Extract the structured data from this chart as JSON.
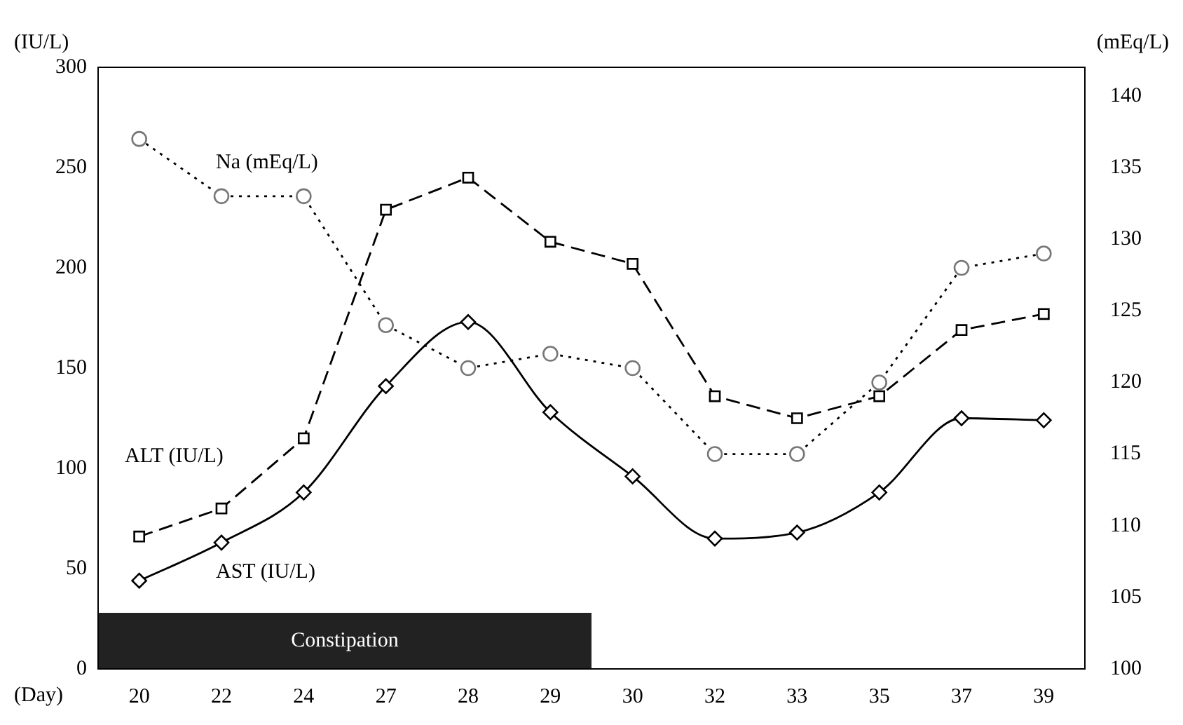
{
  "chart_data": {
    "type": "line",
    "xlabel": "(Day)",
    "ylabel": "(IU/L)",
    "y2label": "(mEq/L)",
    "categories": [
      "20",
      "22",
      "24",
      "27",
      "28",
      "29",
      "30",
      "32",
      "33",
      "35",
      "37",
      "39"
    ],
    "series": [
      {
        "name": "AST (IU/L)",
        "color": "#000000",
        "marker": "diamond",
        "line_style": "solid",
        "values": [
          44,
          63,
          88,
          141,
          173,
          128,
          96,
          65,
          68,
          88,
          125,
          124
        ]
      },
      {
        "name": "ALT (IU/L)",
        "color": "#000000",
        "marker": "square",
        "line_style": "dashed",
        "values": [
          66,
          80,
          115,
          229,
          245,
          213,
          202,
          136,
          125,
          136,
          169,
          177
        ]
      },
      {
        "name": "Na (mEq/L)",
        "color": "#777777",
        "marker": "circle",
        "line_style": "dotted",
        "axis": "y2",
        "values": [
          137,
          133,
          133,
          124,
          121,
          122,
          121,
          115,
          115,
          120,
          128,
          129
        ]
      }
    ],
    "ylim": [
      0,
      300
    ],
    "yticks": [
      0,
      50,
      100,
      150,
      200,
      250,
      300
    ],
    "y2lim": [
      100,
      142
    ],
    "y2ticks": [
      100,
      105,
      110,
      115,
      120,
      125,
      130,
      135,
      140
    ],
    "bands": [
      {
        "axis": "x",
        "from": "20",
        "to": "29",
        "label": "Constipation",
        "color": "#222222"
      }
    ],
    "grid": false,
    "legend": false
  }
}
